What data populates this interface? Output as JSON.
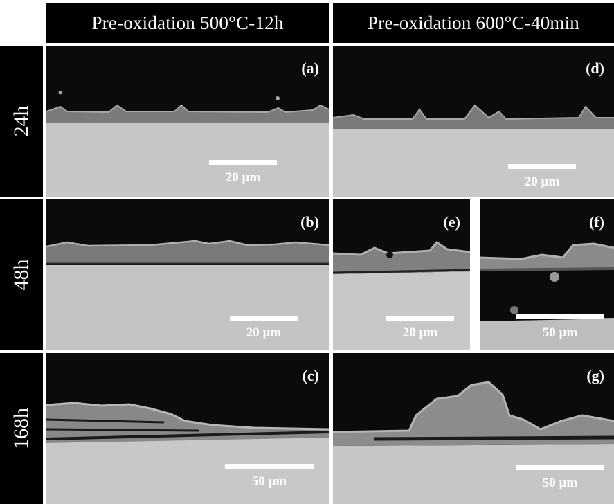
{
  "columns": [
    {
      "label": "Pre-oxidation 500°C-12h"
    },
    {
      "label": "Pre-oxidation 600°C-40min"
    }
  ],
  "rows": [
    {
      "label": "24h"
    },
    {
      "label": "48h"
    },
    {
      "label": "168h"
    }
  ],
  "panels": {
    "a": {
      "label": "(a)",
      "scale": "20 µm"
    },
    "b": {
      "label": "(b)",
      "scale": "20 µm"
    },
    "c": {
      "label": "(c)",
      "scale": "50 µm"
    },
    "d": {
      "label": "(d)",
      "scale": "20 µm"
    },
    "e": {
      "label": "(e)",
      "scale": "20 µm"
    },
    "f": {
      "label": "(f)",
      "scale": "50 µm"
    },
    "g": {
      "label": "(g)",
      "scale": "50 µm"
    }
  },
  "colors": {
    "background": "#0b0b0b",
    "substrate": "#c6c6c6",
    "oxide_layer": "#7a7a7a",
    "nodules": "#9a9a9a",
    "labels": "#ffffff"
  }
}
